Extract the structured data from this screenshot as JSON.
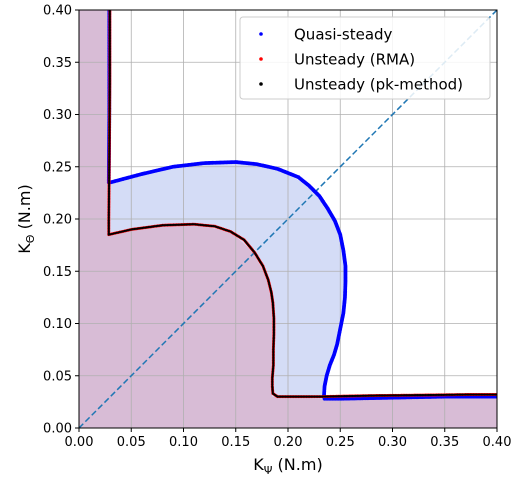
{
  "chart_data": {
    "type": "scatter",
    "xlabel_main": "K",
    "xlabel_sub": "Ψ",
    "xlabel_unit": " (N.m)",
    "ylabel_main": "K",
    "ylabel_sub": "Θ",
    "ylabel_unit": " (N.m)",
    "xlim": [
      0.0,
      0.4
    ],
    "ylim": [
      0.0,
      0.4
    ],
    "x_ticks": [
      "0.00",
      "0.05",
      "0.10",
      "0.15",
      "0.20",
      "0.25",
      "0.30",
      "0.35",
      "0.40"
    ],
    "y_ticks": [
      "0.00",
      "0.05",
      "0.10",
      "0.15",
      "0.20",
      "0.25",
      "0.30",
      "0.35",
      "0.40"
    ],
    "grid": true,
    "legend_position": "top-right",
    "diagonal_line_color": "#1f77b4",
    "regions": [
      {
        "role": "unsteady-stable-region",
        "color": "#d8bcd6",
        "points": [
          [
            0.0,
            0.0
          ],
          [
            0.4,
            0.0
          ],
          [
            0.4,
            0.031
          ],
          [
            0.3,
            0.031
          ],
          [
            0.19,
            0.03
          ],
          [
            0.185,
            0.03
          ],
          [
            0.185,
            0.04
          ],
          [
            0.186,
            0.06
          ],
          [
            0.1865,
            0.09
          ],
          [
            0.1855,
            0.12
          ],
          [
            0.18,
            0.145
          ],
          [
            0.165,
            0.17
          ],
          [
            0.145,
            0.188
          ],
          [
            0.11,
            0.195
          ],
          [
            0.08,
            0.194
          ],
          [
            0.05,
            0.19
          ],
          [
            0.0285,
            0.185
          ],
          [
            0.0285,
            0.2
          ],
          [
            0.029,
            0.3
          ],
          [
            0.0295,
            0.4
          ],
          [
            0.0,
            0.4
          ]
        ]
      },
      {
        "role": "quasi-steady-extra-region",
        "color": "#d4dcf6",
        "points": [
          [
            0.0285,
            0.185
          ],
          [
            0.05,
            0.19
          ],
          [
            0.08,
            0.194
          ],
          [
            0.11,
            0.195
          ],
          [
            0.145,
            0.188
          ],
          [
            0.165,
            0.17
          ],
          [
            0.18,
            0.145
          ],
          [
            0.1855,
            0.12
          ],
          [
            0.1865,
            0.09
          ],
          [
            0.186,
            0.06
          ],
          [
            0.185,
            0.04
          ],
          [
            0.185,
            0.03
          ],
          [
            0.19,
            0.03
          ],
          [
            0.235,
            0.028
          ],
          [
            0.235,
            0.04
          ],
          [
            0.24,
            0.06
          ],
          [
            0.247,
            0.08
          ],
          [
            0.253,
            0.12
          ],
          [
            0.255,
            0.155
          ],
          [
            0.25,
            0.185
          ],
          [
            0.238,
            0.21
          ],
          [
            0.22,
            0.232
          ],
          [
            0.19,
            0.248
          ],
          [
            0.15,
            0.2545
          ],
          [
            0.12,
            0.2535
          ],
          [
            0.09,
            0.25
          ],
          [
            0.06,
            0.243
          ],
          [
            0.03,
            0.235
          ]
        ]
      }
    ],
    "series": [
      {
        "name": "Quasi-steady",
        "color": "#0000ff",
        "points": [
          [
            0.029,
            0.4
          ],
          [
            0.029,
            0.3
          ],
          [
            0.0285,
            0.235
          ],
          [
            0.03,
            0.235
          ],
          [
            0.06,
            0.243
          ],
          [
            0.09,
            0.25
          ],
          [
            0.12,
            0.2535
          ],
          [
            0.15,
            0.2545
          ],
          [
            0.17,
            0.2525
          ],
          [
            0.19,
            0.248
          ],
          [
            0.21,
            0.24
          ],
          [
            0.22,
            0.232
          ],
          [
            0.23,
            0.222
          ],
          [
            0.238,
            0.21
          ],
          [
            0.245,
            0.198
          ],
          [
            0.25,
            0.185
          ],
          [
            0.253,
            0.17
          ],
          [
            0.255,
            0.155
          ],
          [
            0.255,
            0.14
          ],
          [
            0.2545,
            0.125
          ],
          [
            0.253,
            0.11
          ],
          [
            0.25,
            0.095
          ],
          [
            0.247,
            0.08
          ],
          [
            0.244,
            0.07
          ],
          [
            0.24,
            0.06
          ],
          [
            0.237,
            0.05
          ],
          [
            0.235,
            0.04
          ],
          [
            0.2345,
            0.032
          ],
          [
            0.235,
            0.028
          ],
          [
            0.25,
            0.028
          ],
          [
            0.3,
            0.029
          ],
          [
            0.35,
            0.03
          ],
          [
            0.4,
            0.03
          ]
        ]
      },
      {
        "name": "Unsteady (RMA)",
        "color": "#ff0000",
        "points": [
          [
            0.0295,
            0.4
          ],
          [
            0.0295,
            0.33
          ],
          [
            0.029,
            0.26
          ],
          [
            0.0285,
            0.2
          ],
          [
            0.0285,
            0.185
          ],
          [
            0.05,
            0.19
          ],
          [
            0.08,
            0.194
          ],
          [
            0.11,
            0.195
          ],
          [
            0.13,
            0.193
          ],
          [
            0.145,
            0.188
          ],
          [
            0.158,
            0.18
          ],
          [
            0.168,
            0.168
          ],
          [
            0.176,
            0.155
          ],
          [
            0.181,
            0.142
          ],
          [
            0.184,
            0.13
          ],
          [
            0.1855,
            0.12
          ],
          [
            0.1865,
            0.105
          ],
          [
            0.1865,
            0.09
          ],
          [
            0.186,
            0.075
          ],
          [
            0.186,
            0.06
          ],
          [
            0.185,
            0.048
          ],
          [
            0.185,
            0.04
          ],
          [
            0.1855,
            0.033
          ],
          [
            0.19,
            0.03
          ],
          [
            0.23,
            0.03
          ],
          [
            0.28,
            0.031
          ],
          [
            0.33,
            0.0315
          ],
          [
            0.37,
            0.032
          ],
          [
            0.4,
            0.032
          ]
        ]
      },
      {
        "name": "Unsteady (pk-method)",
        "color": "#000000",
        "points": [
          [
            0.0295,
            0.4
          ],
          [
            0.0295,
            0.33
          ],
          [
            0.029,
            0.26
          ],
          [
            0.0285,
            0.2
          ],
          [
            0.0285,
            0.185
          ],
          [
            0.05,
            0.19
          ],
          [
            0.08,
            0.194
          ],
          [
            0.11,
            0.195
          ],
          [
            0.13,
            0.193
          ],
          [
            0.145,
            0.188
          ],
          [
            0.158,
            0.18
          ],
          [
            0.168,
            0.168
          ],
          [
            0.176,
            0.155
          ],
          [
            0.181,
            0.142
          ],
          [
            0.184,
            0.13
          ],
          [
            0.1855,
            0.12
          ],
          [
            0.1865,
            0.105
          ],
          [
            0.1865,
            0.09
          ],
          [
            0.186,
            0.075
          ],
          [
            0.186,
            0.06
          ],
          [
            0.185,
            0.048
          ],
          [
            0.185,
            0.04
          ],
          [
            0.1855,
            0.033
          ],
          [
            0.19,
            0.03
          ],
          [
            0.23,
            0.03
          ],
          [
            0.28,
            0.031
          ],
          [
            0.33,
            0.0315
          ],
          [
            0.37,
            0.032
          ],
          [
            0.4,
            0.032
          ]
        ]
      }
    ]
  }
}
